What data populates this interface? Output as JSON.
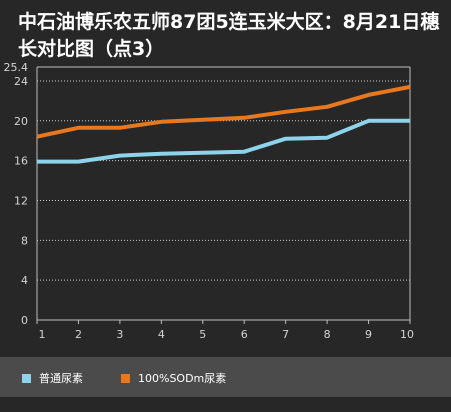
{
  "title": "中石油博乐农五师87团5连玉米大区：8月21日穗长对比图（点3）",
  "chart_data": {
    "type": "line",
    "title": "中石油博乐农五师87团5连玉米大区：8月21日穗长对比图（点3）",
    "x": [
      1,
      2,
      3,
      4,
      5,
      6,
      7,
      8,
      9,
      10
    ],
    "yticks": [
      0,
      4,
      8,
      12,
      16,
      20,
      24,
      25.4
    ],
    "ylim": [
      0,
      25.4
    ],
    "grid": true,
    "legend_position": "bottom",
    "series": [
      {
        "name": "普通尿素",
        "color": "#8dd3ea",
        "values": [
          15.9,
          15.9,
          16.5,
          16.7,
          16.8,
          16.9,
          18.2,
          18.3,
          20.0,
          20.0
        ]
      },
      {
        "name": "100%SODm尿素",
        "color": "#e8781d",
        "values": [
          18.4,
          19.3,
          19.3,
          19.9,
          20.1,
          20.3,
          20.9,
          21.4,
          22.6,
          23.4
        ]
      }
    ]
  }
}
